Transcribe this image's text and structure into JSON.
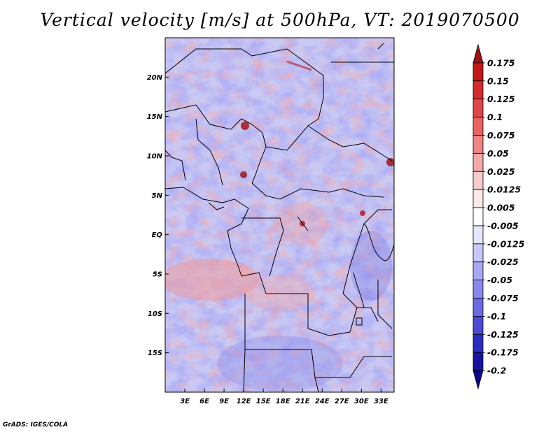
{
  "title": "Vertical velocity [m/s] at 500hPa, VT: 2019070500",
  "credit": "GrADS: IGES/COLA",
  "map": {
    "lon_range": [
      0,
      35
    ],
    "lat_range": [
      -20,
      25
    ],
    "lat_ticks": [
      {
        "value": 20,
        "label": "20N"
      },
      {
        "value": 15,
        "label": "15N"
      },
      {
        "value": 10,
        "label": "10N"
      },
      {
        "value": 5,
        "label": "5N"
      },
      {
        "value": 0,
        "label": "EQ"
      },
      {
        "value": -5,
        "label": "5S"
      },
      {
        "value": -10,
        "label": "10S"
      },
      {
        "value": -15,
        "label": "15S"
      }
    ],
    "lon_ticks": [
      {
        "value": 3,
        "label": "3E"
      },
      {
        "value": 6,
        "label": "6E"
      },
      {
        "value": 9,
        "label": "9E"
      },
      {
        "value": 12,
        "label": "12E"
      },
      {
        "value": 15,
        "label": "15E"
      },
      {
        "value": 18,
        "label": "18E"
      },
      {
        "value": 21,
        "label": "21E"
      },
      {
        "value": 24,
        "label": "24E"
      },
      {
        "value": 27,
        "label": "27E"
      },
      {
        "value": 30,
        "label": "30E"
      },
      {
        "value": 33,
        "label": "33E"
      }
    ]
  },
  "colorbar": {
    "labels": [
      "0.175",
      "0.15",
      "0.125",
      "0.1",
      "0.075",
      "0.05",
      "0.025",
      "0.0125",
      "0.005",
      "-0.005",
      "-0.0125",
      "-0.025",
      "-0.05",
      "-0.075",
      "-0.1",
      "-0.125",
      "-0.175",
      "-0.2"
    ],
    "colors": [
      "#a01010",
      "#c01818",
      "#d42c2c",
      "#e04848",
      "#e86464",
      "#ee8484",
      "#f4a8a8",
      "#f8cccc",
      "#fce8e8",
      "#ffffff",
      "#e6e6fc",
      "#c8c8f8",
      "#a8a8f2",
      "#8888ec",
      "#6a6ae2",
      "#4a4ad4",
      "#2c2cc0",
      "#1414a0",
      "#08088a"
    ]
  }
}
